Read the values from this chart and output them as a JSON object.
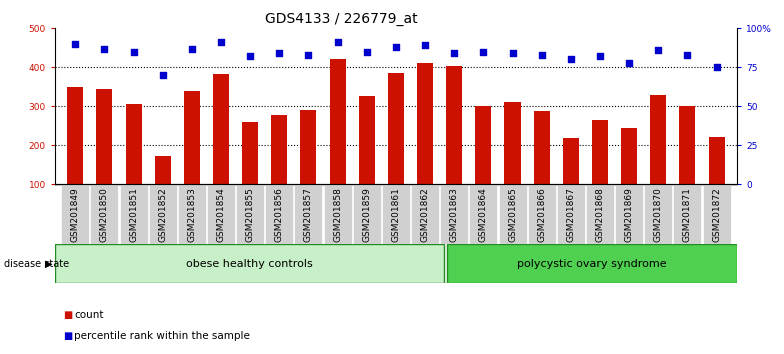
{
  "title": "GDS4133 / 226779_at",
  "samples": [
    "GSM201849",
    "GSM201850",
    "GSM201851",
    "GSM201852",
    "GSM201853",
    "GSM201854",
    "GSM201855",
    "GSM201856",
    "GSM201857",
    "GSM201858",
    "GSM201859",
    "GSM201861",
    "GSM201862",
    "GSM201863",
    "GSM201864",
    "GSM201865",
    "GSM201866",
    "GSM201867",
    "GSM201868",
    "GSM201869",
    "GSM201870",
    "GSM201871",
    "GSM201872"
  ],
  "counts": [
    350,
    344,
    305,
    172,
    338,
    382,
    260,
    278,
    290,
    420,
    325,
    385,
    410,
    402,
    300,
    310,
    288,
    218,
    265,
    245,
    328,
    300,
    220
  ],
  "percentile": [
    90,
    87,
    85,
    70,
    87,
    91,
    82,
    84,
    83,
    91,
    85,
    88,
    89,
    84,
    85,
    84,
    83,
    80,
    82,
    78,
    86,
    83,
    75
  ],
  "ylim_left": [
    100,
    500
  ],
  "ylim_right": [
    0,
    100
  ],
  "yticks_left": [
    100,
    200,
    300,
    400,
    500
  ],
  "yticks_right": [
    0,
    25,
    50,
    75,
    100
  ],
  "ytick_labels_right": [
    "0",
    "25",
    "50",
    "75",
    "100%"
  ],
  "bar_color": "#cc1100",
  "dot_color": "#0000cc",
  "group1_label": "obese healthy controls",
  "group2_label": "polycystic ovary syndrome",
  "group1_count": 13,
  "group2_count": 10,
  "disease_state_label": "disease state",
  "legend_count_label": "count",
  "legend_percentile_label": "percentile rank within the sample",
  "grid_color": "black",
  "title_fontsize": 10,
  "tick_fontsize": 6.5,
  "label_fontsize": 8,
  "group1_color": "#c8f0c8",
  "group2_color": "#50d050",
  "group_border_color": "#228B22",
  "xtick_bg_color": "#d0d0d0"
}
